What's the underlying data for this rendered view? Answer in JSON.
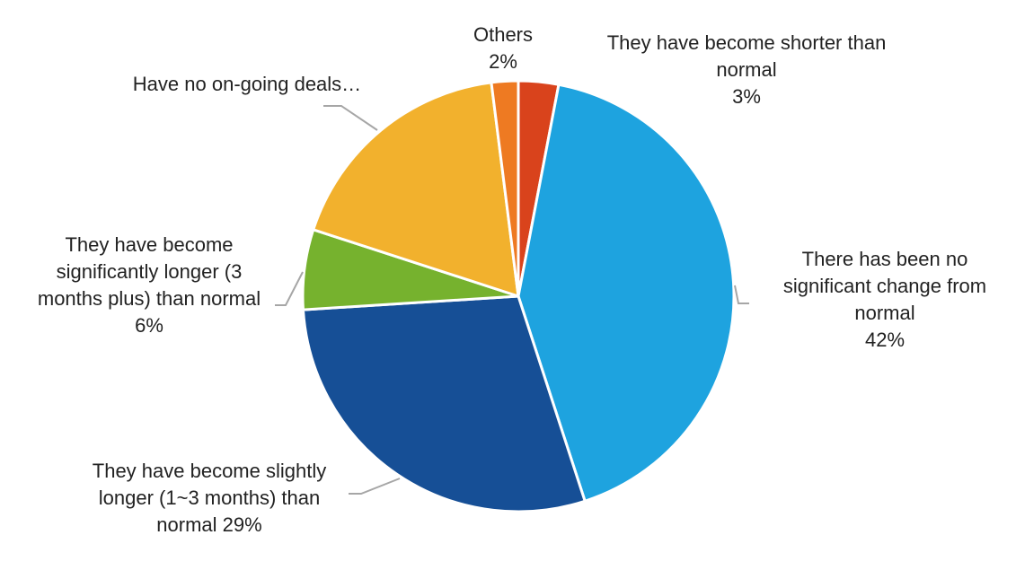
{
  "chart_data": {
    "type": "pie",
    "title": "",
    "slices": [
      {
        "label": "They have become shorter than normal",
        "value": 3,
        "value_label": "3%",
        "color": "#D9431C"
      },
      {
        "label": "There has been no significant change from normal",
        "value": 42,
        "value_label": "42%",
        "color": "#1EA3DF"
      },
      {
        "label": "They have become slightly longer (1~3 months) than normal",
        "value": 29,
        "value_label": "29%",
        "color": "#164F96"
      },
      {
        "label": "They have become significantly longer (3 months plus) than normal",
        "value": 6,
        "value_label": "6%",
        "color": "#76B22E"
      },
      {
        "label": "Have no on-going deals…",
        "value": 18,
        "value_label": "",
        "color": "#F2B12D"
      },
      {
        "label": "Others",
        "value": 2,
        "value_label": "2%",
        "color": "#EE7A22"
      }
    ],
    "labels": {
      "shorter": "They have become shorter than\nnormal\n3%",
      "no_change": "There has been no\nsignificant change from\nnormal\n42%",
      "slightly_longer": "They have become slightly\nlonger (1~3 months) than\nnormal 29%",
      "significantly_longer": "They have become\nsignificantly longer (3\nmonths plus) than normal\n6%",
      "no_deals": "Have no on-going deals…",
      "others": "Others\n2%"
    },
    "legend": "none"
  }
}
